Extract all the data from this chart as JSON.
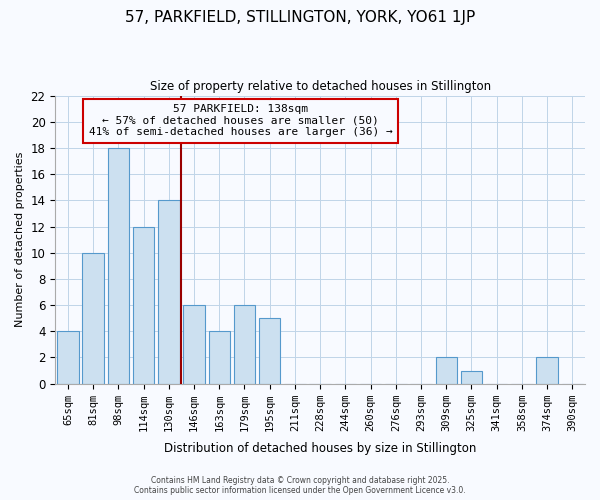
{
  "title": "57, PARKFIELD, STILLINGTON, YORK, YO61 1JP",
  "subtitle": "Size of property relative to detached houses in Stillington",
  "xlabel": "Distribution of detached houses by size in Stillington",
  "ylabel": "Number of detached properties",
  "bar_labels": [
    "65sqm",
    "81sqm",
    "98sqm",
    "114sqm",
    "130sqm",
    "146sqm",
    "163sqm",
    "179sqm",
    "195sqm",
    "211sqm",
    "228sqm",
    "244sqm",
    "260sqm",
    "276sqm",
    "293sqm",
    "309sqm",
    "325sqm",
    "341sqm",
    "358sqm",
    "374sqm",
    "390sqm"
  ],
  "bar_values": [
    4,
    10,
    18,
    12,
    14,
    6,
    4,
    6,
    5,
    0,
    0,
    0,
    0,
    0,
    0,
    2,
    1,
    0,
    0,
    2,
    0
  ],
  "bar_color": "#cce0f0",
  "bar_edge_color": "#5599cc",
  "grid_color": "#c0d4e8",
  "background_color": "#f8faff",
  "annotation_box_text": "57 PARKFIELD: 138sqm\n← 57% of detached houses are smaller (50)\n41% of semi-detached houses are larger (36) →",
  "annotation_box_edge_color": "#cc0000",
  "reference_line_color": "#990000",
  "ylim": [
    0,
    22
  ],
  "yticks": [
    0,
    2,
    4,
    6,
    8,
    10,
    12,
    14,
    16,
    18,
    20,
    22
  ],
  "footer_line1": "Contains HM Land Registry data © Crown copyright and database right 2025.",
  "footer_line2": "Contains public sector information licensed under the Open Government Licence v3.0."
}
